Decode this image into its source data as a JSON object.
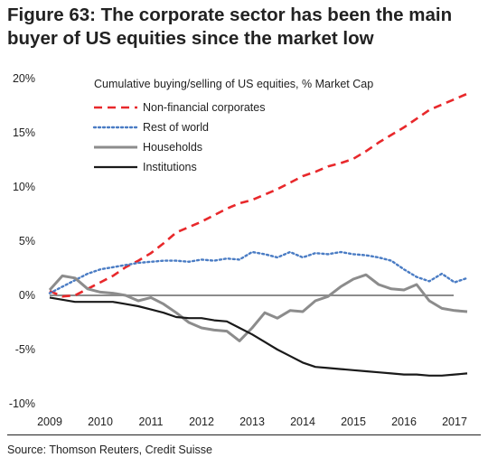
{
  "figure": {
    "title_line1": "Figure 63: The corporate sector has been the main",
    "title_line2": "buyer of US equities since the market low",
    "source": "Source: Thomson Reuters, Credit Suisse"
  },
  "chart_data": {
    "type": "line",
    "title": "Cumulative buying/selling of US equities, % Market Cap",
    "xlabel": "",
    "ylabel": "",
    "xlim": [
      2009,
      2017.6
    ],
    "ylim": [
      -10,
      20
    ],
    "x_ticks": [
      "2009",
      "2010",
      "2011",
      "2012",
      "2013",
      "2014",
      "2015",
      "2016",
      "2017"
    ],
    "y_ticks": [
      "20%",
      "15%",
      "10%",
      "5%",
      "0%",
      "-5%",
      "-10%"
    ],
    "y_tick_values": [
      20,
      15,
      10,
      5,
      0,
      -5,
      -10
    ],
    "grid": false,
    "zero_line": true,
    "legend_position": "top-left",
    "series": [
      {
        "name": "Non-financial corporates",
        "color": "#e8282b",
        "style": "dashed",
        "points": [
          [
            2009.0,
            0.4
          ],
          [
            2009.25,
            -0.1
          ],
          [
            2009.5,
            0.0
          ],
          [
            2009.75,
            0.6
          ],
          [
            2010.0,
            1.2
          ],
          [
            2010.25,
            1.8
          ],
          [
            2010.5,
            2.6
          ],
          [
            2010.75,
            3.2
          ],
          [
            2011.0,
            3.9
          ],
          [
            2011.25,
            4.8
          ],
          [
            2011.5,
            5.8
          ],
          [
            2011.75,
            6.3
          ],
          [
            2012.0,
            6.8
          ],
          [
            2012.25,
            7.4
          ],
          [
            2012.5,
            8.0
          ],
          [
            2012.75,
            8.5
          ],
          [
            2013.0,
            8.8
          ],
          [
            2013.25,
            9.3
          ],
          [
            2013.5,
            9.8
          ],
          [
            2013.75,
            10.4
          ],
          [
            2014.0,
            11.0
          ],
          [
            2014.25,
            11.4
          ],
          [
            2014.5,
            11.9
          ],
          [
            2014.75,
            12.2
          ],
          [
            2015.0,
            12.6
          ],
          [
            2015.25,
            13.3
          ],
          [
            2015.5,
            14.1
          ],
          [
            2015.75,
            14.8
          ],
          [
            2016.0,
            15.5
          ],
          [
            2016.25,
            16.3
          ],
          [
            2016.5,
            17.1
          ],
          [
            2016.75,
            17.6
          ],
          [
            2017.0,
            18.1
          ],
          [
            2017.25,
            18.6
          ]
        ]
      },
      {
        "name": "Rest of world",
        "color": "#4a7cc4",
        "style": "dotted",
        "points": [
          [
            2009.0,
            0.2
          ],
          [
            2009.25,
            0.8
          ],
          [
            2009.5,
            1.4
          ],
          [
            2009.75,
            2.0
          ],
          [
            2010.0,
            2.4
          ],
          [
            2010.25,
            2.6
          ],
          [
            2010.5,
            2.8
          ],
          [
            2010.75,
            3.0
          ],
          [
            2011.0,
            3.1
          ],
          [
            2011.25,
            3.2
          ],
          [
            2011.5,
            3.2
          ],
          [
            2011.75,
            3.1
          ],
          [
            2012.0,
            3.3
          ],
          [
            2012.25,
            3.2
          ],
          [
            2012.5,
            3.4
          ],
          [
            2012.75,
            3.3
          ],
          [
            2013.0,
            4.0
          ],
          [
            2013.25,
            3.8
          ],
          [
            2013.5,
            3.5
          ],
          [
            2013.75,
            4.0
          ],
          [
            2014.0,
            3.5
          ],
          [
            2014.25,
            3.9
          ],
          [
            2014.5,
            3.8
          ],
          [
            2014.75,
            4.0
          ],
          [
            2015.0,
            3.8
          ],
          [
            2015.25,
            3.7
          ],
          [
            2015.5,
            3.5
          ],
          [
            2015.75,
            3.2
          ],
          [
            2016.0,
            2.4
          ],
          [
            2016.25,
            1.7
          ],
          [
            2016.5,
            1.3
          ],
          [
            2016.75,
            2.0
          ],
          [
            2017.0,
            1.2
          ],
          [
            2017.25,
            1.6
          ]
        ]
      },
      {
        "name": "Households",
        "color": "#8c8c8c",
        "style": "solid",
        "points": [
          [
            2009.0,
            0.5
          ],
          [
            2009.25,
            1.8
          ],
          [
            2009.5,
            1.6
          ],
          [
            2009.75,
            0.6
          ],
          [
            2010.0,
            0.3
          ],
          [
            2010.25,
            0.2
          ],
          [
            2010.5,
            0.0
          ],
          [
            2010.75,
            -0.5
          ],
          [
            2011.0,
            -0.2
          ],
          [
            2011.25,
            -0.8
          ],
          [
            2011.5,
            -1.6
          ],
          [
            2011.75,
            -2.5
          ],
          [
            2012.0,
            -3.0
          ],
          [
            2012.25,
            -3.2
          ],
          [
            2012.5,
            -3.3
          ],
          [
            2012.75,
            -4.2
          ],
          [
            2013.0,
            -3.0
          ],
          [
            2013.25,
            -1.6
          ],
          [
            2013.5,
            -2.1
          ],
          [
            2013.75,
            -1.4
          ],
          [
            2014.0,
            -1.5
          ],
          [
            2014.25,
            -0.5
          ],
          [
            2014.5,
            -0.1
          ],
          [
            2014.75,
            0.8
          ],
          [
            2015.0,
            1.5
          ],
          [
            2015.25,
            1.9
          ],
          [
            2015.5,
            1.0
          ],
          [
            2015.75,
            0.6
          ],
          [
            2016.0,
            0.5
          ],
          [
            2016.25,
            1.0
          ],
          [
            2016.5,
            -0.5
          ],
          [
            2016.75,
            -1.2
          ],
          [
            2017.0,
            -1.4
          ],
          [
            2017.25,
            -1.5
          ]
        ]
      },
      {
        "name": "Institutions",
        "color": "#1a1a1a",
        "style": "solid",
        "points": [
          [
            2009.0,
            -0.2
          ],
          [
            2009.25,
            -0.4
          ],
          [
            2009.5,
            -0.6
          ],
          [
            2009.75,
            -0.6
          ],
          [
            2010.0,
            -0.6
          ],
          [
            2010.25,
            -0.6
          ],
          [
            2010.5,
            -0.8
          ],
          [
            2010.75,
            -1.0
          ],
          [
            2011.0,
            -1.3
          ],
          [
            2011.25,
            -1.6
          ],
          [
            2011.5,
            -2.0
          ],
          [
            2011.75,
            -2.1
          ],
          [
            2012.0,
            -2.1
          ],
          [
            2012.25,
            -2.3
          ],
          [
            2012.5,
            -2.4
          ],
          [
            2012.75,
            -3.0
          ],
          [
            2013.0,
            -3.6
          ],
          [
            2013.25,
            -4.3
          ],
          [
            2013.5,
            -5.0
          ],
          [
            2013.75,
            -5.6
          ],
          [
            2014.0,
            -6.2
          ],
          [
            2014.25,
            -6.6
          ],
          [
            2014.5,
            -6.7
          ],
          [
            2014.75,
            -6.8
          ],
          [
            2015.0,
            -6.9
          ],
          [
            2015.25,
            -7.0
          ],
          [
            2015.5,
            -7.1
          ],
          [
            2015.75,
            -7.2
          ],
          [
            2016.0,
            -7.3
          ],
          [
            2016.25,
            -7.3
          ],
          [
            2016.5,
            -7.4
          ],
          [
            2016.75,
            -7.4
          ],
          [
            2017.0,
            -7.3
          ],
          [
            2017.25,
            -7.2
          ]
        ]
      }
    ]
  }
}
